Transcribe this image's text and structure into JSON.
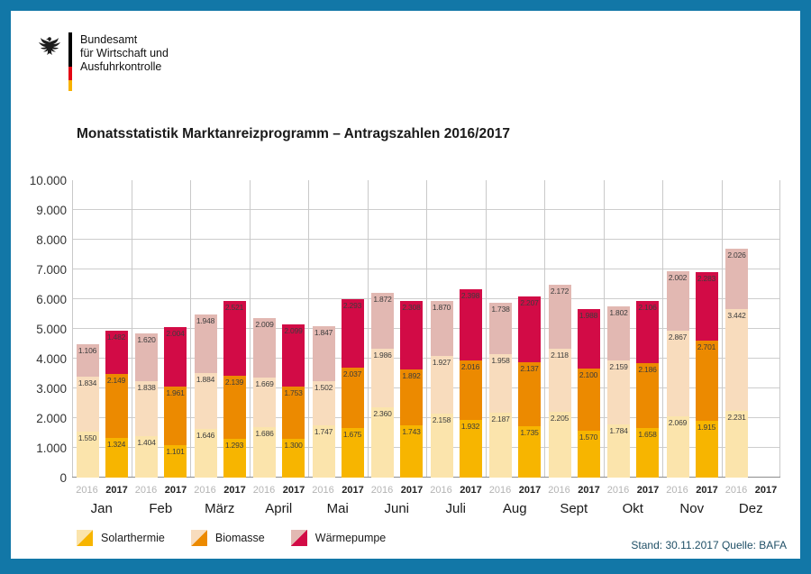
{
  "page": {
    "border_color": "#1277A7",
    "background_color": "#ffffff"
  },
  "header": {
    "org_lines": [
      "Bundesamt",
      "für Wirtschaft und",
      "Ausfuhrkontrolle"
    ],
    "flag_colors": [
      "#000000",
      "#E30613",
      "#F8B200"
    ]
  },
  "title": "Monatsstatistik Marktanreizprogramm – Antragszahlen 2016/2017",
  "footer": {
    "status": "Stand: 30.11.2017  Quelle: BAFA"
  },
  "legend": {
    "items": [
      {
        "key": "solarthermie",
        "label": "Solarthermie"
      },
      {
        "key": "biomasse",
        "label": "Biomasse"
      },
      {
        "key": "waermepumpe",
        "label": "Wärmepumpe"
      }
    ]
  },
  "chart_data": {
    "type": "bar",
    "stacked": true,
    "title": "Monatsstatistik Marktanreizprogramm – Antragszahlen 2016/2017",
    "xlabel": "",
    "ylabel": "",
    "ylim": [
      0,
      10000
    ],
    "ytick_step": 1000,
    "ytick_labels": [
      "0",
      "1.000",
      "2.000",
      "3.000",
      "4.000",
      "5.000",
      "6.000",
      "7.000",
      "8.000",
      "9.000",
      "10.000"
    ],
    "grid": true,
    "legend_position": "bottom-left",
    "categories": [
      "Jan",
      "Feb",
      "März",
      "April",
      "Mai",
      "Juni",
      "Juli",
      "Aug",
      "Sept",
      "Okt",
      "Nov",
      "Dez"
    ],
    "years": [
      "2016",
      "2017"
    ],
    "series_keys": [
      "solarthermie",
      "biomasse",
      "waermepumpe"
    ],
    "series_labels": {
      "solarthermie": "Solarthermie",
      "biomasse": "Biomasse",
      "waermepumpe": "Wärmepumpe"
    },
    "colors": {
      "2016": {
        "solarthermie": "#FBE4AC",
        "biomasse": "#F8DCBD",
        "waermepumpe": "#E2B8B2"
      },
      "2017": {
        "solarthermie": "#F7B500",
        "biomasse": "#EC8A00",
        "waermepumpe": "#D20B46"
      }
    },
    "months": [
      {
        "month": "Jan",
        "bars": [
          {
            "year": "2016",
            "values": {
              "solarthermie": 1550,
              "biomasse": 1834,
              "waermepumpe": 1106
            }
          },
          {
            "year": "2017",
            "values": {
              "solarthermie": 1324,
              "biomasse": 2149,
              "waermepumpe": 1482
            }
          }
        ]
      },
      {
        "month": "Feb",
        "bars": [
          {
            "year": "2016",
            "values": {
              "solarthermie": 1404,
              "biomasse": 1838,
              "waermepumpe": 1620
            }
          },
          {
            "year": "2017",
            "values": {
              "solarthermie": 1101,
              "biomasse": 1961,
              "waermepumpe": 2004
            }
          }
        ]
      },
      {
        "month": "März",
        "bars": [
          {
            "year": "2016",
            "values": {
              "solarthermie": 1646,
              "biomasse": 1884,
              "waermepumpe": 1948
            }
          },
          {
            "year": "2017",
            "values": {
              "solarthermie": 1293,
              "biomasse": 2139,
              "waermepumpe": 2521
            }
          }
        ]
      },
      {
        "month": "April",
        "bars": [
          {
            "year": "2016",
            "values": {
              "solarthermie": 1686,
              "biomasse": 1669,
              "waermepumpe": 2009
            }
          },
          {
            "year": "2017",
            "values": {
              "solarthermie": 1300,
              "biomasse": 1753,
              "waermepumpe": 2099
            }
          }
        ]
      },
      {
        "month": "Mai",
        "bars": [
          {
            "year": "2016",
            "values": {
              "solarthermie": 1747,
              "biomasse": 1502,
              "waermepumpe": 1847
            }
          },
          {
            "year": "2017",
            "values": {
              "solarthermie": 1675,
              "biomasse": 2037,
              "waermepumpe": 2293
            }
          }
        ]
      },
      {
        "month": "Juni",
        "bars": [
          {
            "year": "2016",
            "values": {
              "solarthermie": 2360,
              "biomasse": 1986,
              "waermepumpe": 1872
            }
          },
          {
            "year": "2017",
            "values": {
              "solarthermie": 1743,
              "biomasse": 1892,
              "waermepumpe": 2308
            }
          }
        ]
      },
      {
        "month": "Juli",
        "bars": [
          {
            "year": "2016",
            "values": {
              "solarthermie": 2158,
              "biomasse": 1927,
              "waermepumpe": 1870
            }
          },
          {
            "year": "2017",
            "values": {
              "solarthermie": 1932,
              "biomasse": 2016,
              "waermepumpe": 2398
            }
          }
        ]
      },
      {
        "month": "Aug",
        "bars": [
          {
            "year": "2016",
            "values": {
              "solarthermie": 2187,
              "biomasse": 1958,
              "waermepumpe": 1738
            }
          },
          {
            "year": "2017",
            "values": {
              "solarthermie": 1735,
              "biomasse": 2137,
              "waermepumpe": 2207
            }
          }
        ]
      },
      {
        "month": "Sept",
        "bars": [
          {
            "year": "2016",
            "values": {
              "solarthermie": 2205,
              "biomasse": 2118,
              "waermepumpe": 2172
            }
          },
          {
            "year": "2017",
            "values": {
              "solarthermie": 1570,
              "biomasse": 2100,
              "waermepumpe": 1988
            }
          }
        ]
      },
      {
        "month": "Okt",
        "bars": [
          {
            "year": "2016",
            "values": {
              "solarthermie": 1784,
              "biomasse": 2159,
              "waermepumpe": 1802
            }
          },
          {
            "year": "2017",
            "values": {
              "solarthermie": 1658,
              "biomasse": 2186,
              "waermepumpe": 2106
            }
          }
        ]
      },
      {
        "month": "Nov",
        "bars": [
          {
            "year": "2016",
            "values": {
              "solarthermie": 2069,
              "biomasse": 2867,
              "waermepumpe": 2002
            }
          },
          {
            "year": "2017",
            "values": {
              "solarthermie": 1915,
              "biomasse": 2701,
              "waermepumpe": 2283
            }
          }
        ]
      },
      {
        "month": "Dez",
        "bars": [
          {
            "year": "2016",
            "values": {
              "solarthermie": 2231,
              "biomasse": 3442,
              "waermepumpe": 2026
            }
          }
        ]
      }
    ]
  }
}
